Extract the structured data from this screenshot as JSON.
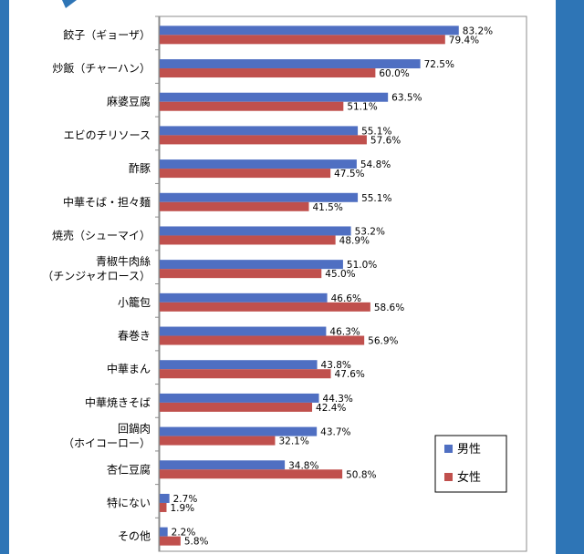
{
  "chart_data": {
    "type": "bar",
    "orientation": "horizontal",
    "title": "",
    "xlabel": "",
    "ylabel": "",
    "xlim": [
      0,
      100
    ],
    "grid": false,
    "legend_position": "bottom-right",
    "value_suffix": "%",
    "categories": [
      [
        "餃子（ギョーザ）"
      ],
      [
        "炒飯（チャーハン）"
      ],
      [
        "麻婆豆腐"
      ],
      [
        "エビのチリソース"
      ],
      [
        "酢豚"
      ],
      [
        "中華そば・担々麺"
      ],
      [
        "焼売（シューマイ）"
      ],
      [
        "青椒牛肉絲",
        "（チンジャオロース）"
      ],
      [
        "小籠包"
      ],
      [
        "春巻き"
      ],
      [
        "中華まん"
      ],
      [
        "中華焼きそば"
      ],
      [
        "回鍋肉",
        "（ホイコーロー）"
      ],
      [
        "杏仁豆腐"
      ],
      [
        "特にない"
      ],
      [
        "その他"
      ]
    ],
    "series": [
      {
        "name": "男性",
        "color": "#4f6fc2",
        "values": [
          83.2,
          72.5,
          63.5,
          55.1,
          54.8,
          55.1,
          53.2,
          51.0,
          46.6,
          46.3,
          43.8,
          44.3,
          43.7,
          34.8,
          2.7,
          2.2
        ]
      },
      {
        "name": "女性",
        "color": "#c0504d",
        "values": [
          79.4,
          60.0,
          51.1,
          57.6,
          47.5,
          41.5,
          48.9,
          45.0,
          58.6,
          56.9,
          47.6,
          42.4,
          32.1,
          50.8,
          1.9,
          5.8
        ]
      }
    ]
  }
}
